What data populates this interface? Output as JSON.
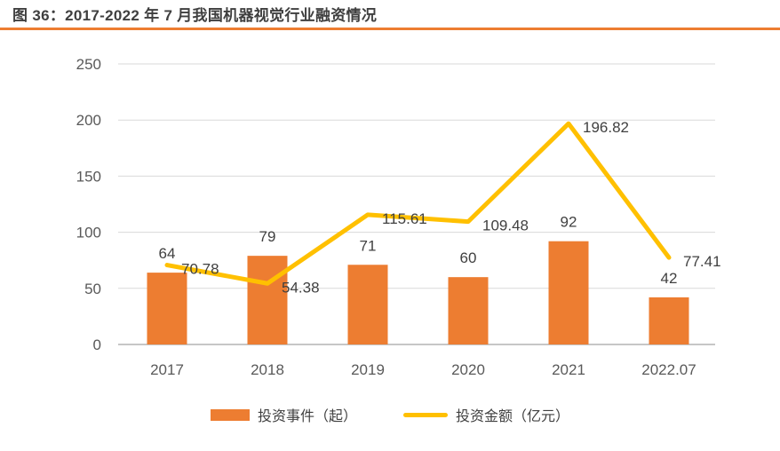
{
  "header": {
    "title": "图 36：2017-2022 年 7 月我国机器视觉行业融资情况"
  },
  "chart_data": {
    "type": "combo",
    "title": "2017-2022 年 7 月我国机器视觉行业融资情况",
    "categories": [
      "2017",
      "2018",
      "2019",
      "2020",
      "2021",
      "2022.07"
    ],
    "series": [
      {
        "name": "投资事件（起）",
        "type": "bar",
        "color": "#ED7D31",
        "values": [
          64,
          79,
          71,
          60,
          92,
          42
        ]
      },
      {
        "name": "投资金额（亿元）",
        "type": "line",
        "color": "#FFC000",
        "values": [
          70.78,
          54.38,
          115.61,
          109.48,
          196.82,
          77.41
        ]
      }
    ],
    "y_ticks": [
      0,
      50,
      100,
      150,
      200,
      250
    ],
    "ylim": [
      0,
      250
    ],
    "grid": true,
    "data_labels": true,
    "legend_position": "bottom"
  },
  "colors": {
    "title_text": "#3F3F3F",
    "title_rule": "#ED7D31",
    "axis_text": "#595959",
    "data_label_text": "#404040",
    "gridline": "#D9D9D9",
    "axis_line": "#C6C6C6",
    "background": "#FFFFFF"
  }
}
